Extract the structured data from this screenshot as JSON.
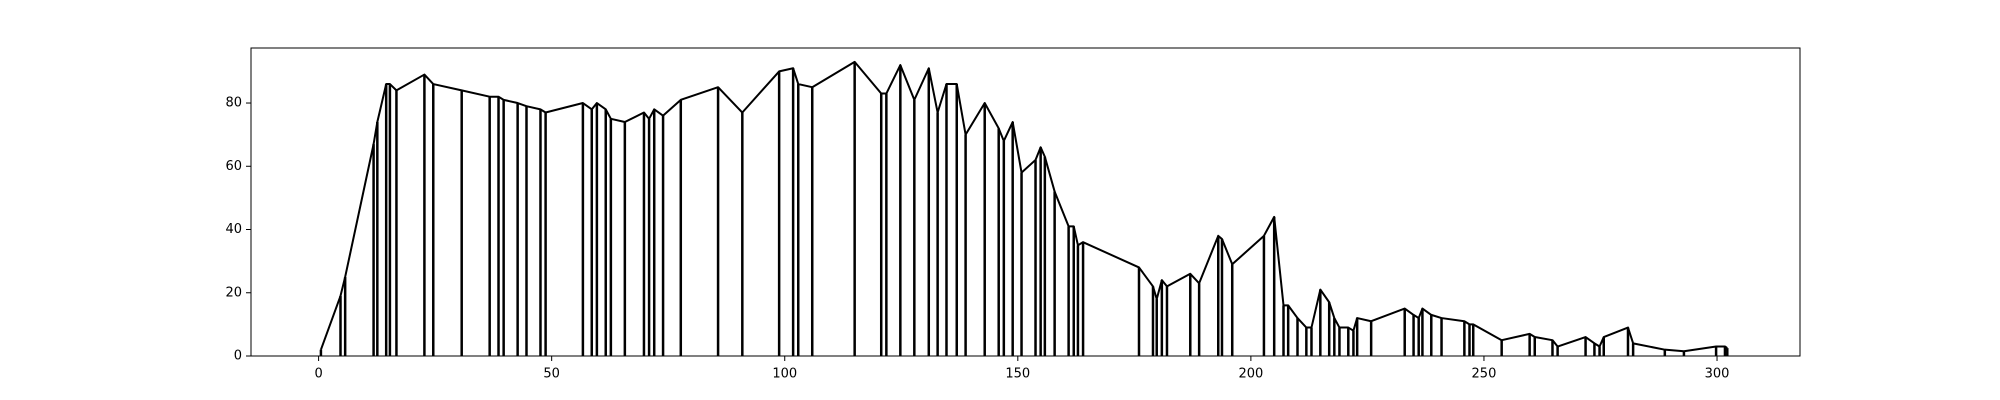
{
  "chart_data": {
    "type": "line",
    "x": [
      0.5,
      4.7,
      5.7,
      11.8,
      12.6,
      14.5,
      15.3,
      16.7,
      22.7,
      24.6,
      30.7,
      36.7,
      38.6,
      39.7,
      42.7,
      44.6,
      47.6,
      48.7,
      56.7,
      58.6,
      59.7,
      61.6,
      62.7,
      65.7,
      69.8,
      70.9,
      72.0,
      73.9,
      77.7,
      85.7,
      90.9,
      98.8,
      101.8,
      102.9,
      105.9,
      115.0,
      120.7,
      121.8,
      124.8,
      127.8,
      130.9,
      132.8,
      134.7,
      136.9,
      138.8,
      142.9,
      145.9,
      147.0,
      148.9,
      150.8,
      153.8,
      154.9,
      155.8,
      157.9,
      160.9,
      162.0,
      162.9,
      164.0,
      176.0,
      179.0,
      179.8,
      180.9,
      182.0,
      187.0,
      188.9,
      193.0,
      193.8,
      196.0,
      202.8,
      205.0,
      207.0,
      208.0,
      210.0,
      211.9,
      213.0,
      214.9,
      216.8,
      217.9,
      219.0,
      220.9,
      222.0,
      222.8,
      225.8,
      233.0,
      234.9,
      236.0,
      236.8,
      238.7,
      240.9,
      245.8,
      246.9,
      247.7,
      253.8,
      259.8,
      260.9,
      264.7,
      265.8,
      271.8,
      273.7,
      274.8,
      275.7,
      280.9,
      282.0,
      288.8,
      292.9,
      299.8,
      301.7,
      302.2
    ],
    "series": [
      {
        "color": "#000000",
        "values": [
          2,
          19,
          25,
          67,
          74,
          86,
          86,
          84,
          89,
          86,
          84,
          82,
          82,
          81,
          80,
          79,
          78,
          77,
          80,
          78,
          80,
          78,
          75,
          74,
          77,
          75,
          78,
          76,
          81,
          85,
          77,
          90,
          91,
          86,
          85,
          93,
          83,
          83,
          92,
          81,
          91,
          77,
          86,
          86,
          70,
          80,
          72,
          68,
          74,
          58,
          62,
          66,
          63,
          52,
          41,
          41,
          35,
          36,
          28,
          22,
          18,
          24,
          22,
          26,
          23,
          38,
          37,
          29,
          38,
          44,
          16,
          16,
          12,
          9,
          9,
          21,
          17,
          12,
          9,
          9,
          8,
          12,
          11,
          15,
          13,
          12,
          15,
          13,
          12,
          11,
          10,
          10,
          5,
          7,
          6,
          5,
          3,
          6,
          4,
          3,
          6,
          9,
          4,
          2,
          1.5,
          3,
          3,
          2.5
        ]
      }
    ],
    "xlim": [
      -14.5,
      317.8
    ],
    "ylim": [
      0,
      97.4
    ],
    "xticks": [
      0,
      50,
      100,
      150,
      200,
      250,
      300
    ],
    "yticks": [
      0,
      20,
      40,
      60,
      80
    ],
    "stems": true
  }
}
